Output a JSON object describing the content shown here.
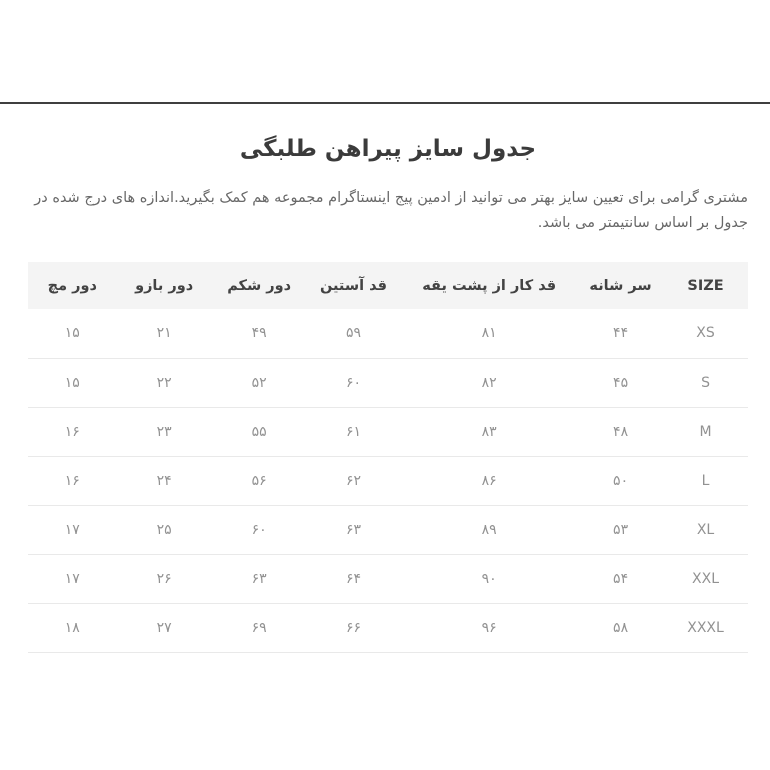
{
  "page": {
    "title": "جدول سایز پیراهن طلبگی",
    "description": "مشتری گرامی برای تعیین سایز بهتر می توانید از ادمین پیج اینستاگرام مجموعه هم کمک بگیرید.اندازه های درج شده در جدول بر اساس سانتیمتر می باشد."
  },
  "table": {
    "headers": [
      "SIZE",
      "سر شانه",
      "قد کار از پشت یقه",
      "قد آستین",
      "دور شکم",
      "دور بازو",
      "دور مچ"
    ],
    "header_keys": [
      "size",
      "shoulder",
      "back-length",
      "sleeve-length",
      "belly",
      "arm",
      "wrist"
    ],
    "rows": [
      [
        "XS",
        "۴۴",
        "۸۱",
        "۵۹",
        "۴۹",
        "۲۱",
        "۱۵"
      ],
      [
        "S",
        "۴۵",
        "۸۲",
        "۶۰",
        "۵۲",
        "۲۲",
        "۱۵"
      ],
      [
        "M",
        "۴۸",
        "۸۳",
        "۶۱",
        "۵۵",
        "۲۳",
        "۱۶"
      ],
      [
        "L",
        "۵۰",
        "۸۶",
        "۶۲",
        "۵۶",
        "۲۴",
        "۱۶"
      ],
      [
        "XL",
        "۵۳",
        "۸۹",
        "۶۳",
        "۶۰",
        "۲۵",
        "۱۷"
      ],
      [
        "XXL",
        "۵۴",
        "۹۰",
        "۶۴",
        "۶۳",
        "۲۶",
        "۱۷"
      ],
      [
        "XXXL",
        "۵۸",
        "۹۶",
        "۶۶",
        "۶۹",
        "۲۷",
        "۱۸"
      ]
    ]
  },
  "colors": {
    "top_divider": "#3f3f3f",
    "title_text": "#3b3b3b",
    "description_text": "#686868",
    "header_background": "#f4f4f4",
    "header_text": "#434343",
    "cell_text": "#929292",
    "row_border": "#e9e9e9",
    "page_background": "#ffffff"
  }
}
